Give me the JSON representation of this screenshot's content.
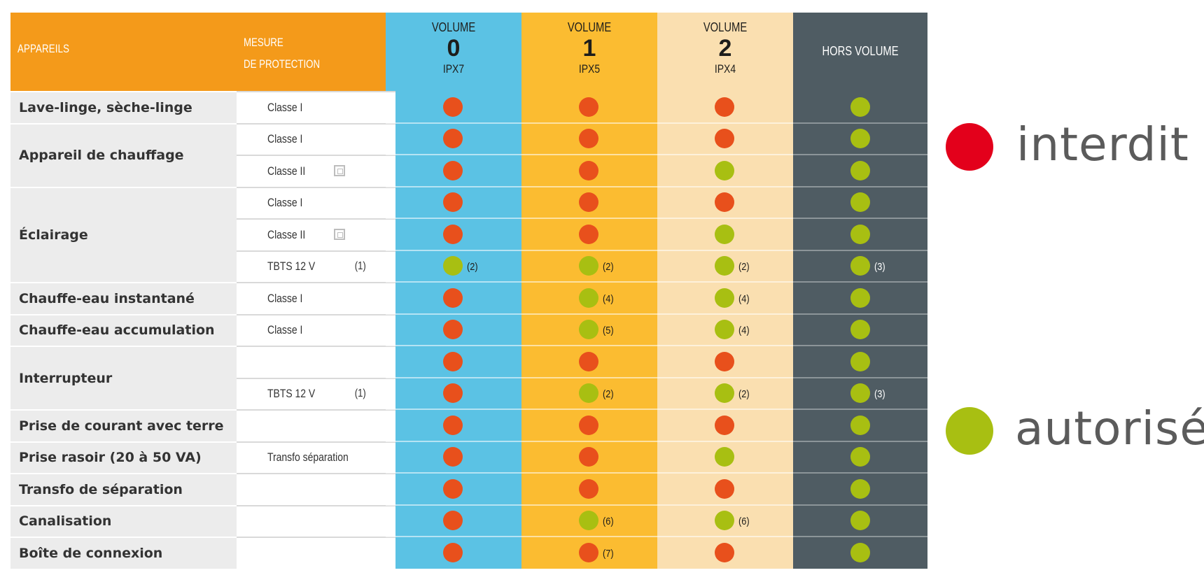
{
  "header": {
    "appareils_label": "APPAREILS",
    "mesure_label_line1": "MESURE",
    "mesure_label_line2": "DE PROTECTION",
    "volumes": [
      {
        "word": "VOLUME",
        "number": "0",
        "ip": "IPX7"
      },
      {
        "word": "VOLUME",
        "number": "1",
        "ip": "IPX5"
      },
      {
        "word": "VOLUME",
        "number": "2",
        "ip": "IPX4"
      }
    ],
    "hors_volume_label": "HORS VOLUME"
  },
  "colors": {
    "header_orange": "#f49a1a",
    "volume0": "#5bc2e4",
    "volume1": "#fbbc31",
    "volume2": "#fadfb0",
    "hors_volume": "#4f5c63",
    "forbidden": "#e8501c",
    "allowed": "#a8bf12",
    "legend_forbidden": "#e3001b",
    "legend_allowed": "#a8bf12"
  },
  "groups": [
    {
      "label": "Lave-linge, sèche-linge",
      "rows": 1
    },
    {
      "label": "Appareil de chauffage",
      "rows": 2
    },
    {
      "label": "Éclairage",
      "rows": 3
    },
    {
      "label": "Chauffe-eau instantané",
      "rows": 1
    },
    {
      "label": "Chauffe-eau accumulation",
      "rows": 1
    },
    {
      "label": "Interrupteur",
      "rows": 2
    },
    {
      "label": "Prise de courant avec terre",
      "rows": 1
    },
    {
      "label": "Prise rasoir (20 à 50 VA)",
      "rows": 1
    },
    {
      "label": "Transfo de séparation",
      "rows": 1
    },
    {
      "label": "Canalisation",
      "rows": 1
    },
    {
      "label": "Boîte de connexion",
      "rows": 1
    }
  ],
  "rows": [
    {
      "measure": "Classe I",
      "measure_note": "",
      "class2_icon": false,
      "cells": [
        {
          "status": "forbidden",
          "note": ""
        },
        {
          "status": "forbidden",
          "note": ""
        },
        {
          "status": "forbidden",
          "note": ""
        },
        {
          "status": "allowed",
          "note": ""
        }
      ]
    },
    {
      "measure": "Classe I",
      "measure_note": "",
      "class2_icon": false,
      "cells": [
        {
          "status": "forbidden",
          "note": ""
        },
        {
          "status": "forbidden",
          "note": ""
        },
        {
          "status": "forbidden",
          "note": ""
        },
        {
          "status": "allowed",
          "note": ""
        }
      ]
    },
    {
      "measure": "Classe II",
      "measure_note": "",
      "class2_icon": true,
      "cells": [
        {
          "status": "forbidden",
          "note": ""
        },
        {
          "status": "forbidden",
          "note": ""
        },
        {
          "status": "allowed",
          "note": ""
        },
        {
          "status": "allowed",
          "note": ""
        }
      ]
    },
    {
      "measure": "Classe I",
      "measure_note": "",
      "class2_icon": false,
      "cells": [
        {
          "status": "forbidden",
          "note": ""
        },
        {
          "status": "forbidden",
          "note": ""
        },
        {
          "status": "forbidden",
          "note": ""
        },
        {
          "status": "allowed",
          "note": ""
        }
      ]
    },
    {
      "measure": "Classe II",
      "measure_note": "",
      "class2_icon": true,
      "cells": [
        {
          "status": "forbidden",
          "note": ""
        },
        {
          "status": "forbidden",
          "note": ""
        },
        {
          "status": "allowed",
          "note": ""
        },
        {
          "status": "allowed",
          "note": ""
        }
      ]
    },
    {
      "measure": "TBTS 12 V",
      "measure_note": "(1)",
      "class2_icon": false,
      "cells": [
        {
          "status": "allowed",
          "note": "(2)"
        },
        {
          "status": "allowed",
          "note": "(2)"
        },
        {
          "status": "allowed",
          "note": "(2)"
        },
        {
          "status": "allowed",
          "note": "(3)"
        }
      ]
    },
    {
      "measure": "Classe I",
      "measure_note": "",
      "class2_icon": false,
      "cells": [
        {
          "status": "forbidden",
          "note": ""
        },
        {
          "status": "allowed",
          "note": "(4)"
        },
        {
          "status": "allowed",
          "note": "(4)"
        },
        {
          "status": "allowed",
          "note": ""
        }
      ]
    },
    {
      "measure": "Classe I",
      "measure_note": "",
      "class2_icon": false,
      "cells": [
        {
          "status": "forbidden",
          "note": ""
        },
        {
          "status": "allowed",
          "note": "(5)"
        },
        {
          "status": "allowed",
          "note": "(4)"
        },
        {
          "status": "allowed",
          "note": ""
        }
      ]
    },
    {
      "measure": "",
      "measure_note": "",
      "class2_icon": false,
      "cells": [
        {
          "status": "forbidden",
          "note": ""
        },
        {
          "status": "forbidden",
          "note": ""
        },
        {
          "status": "forbidden",
          "note": ""
        },
        {
          "status": "allowed",
          "note": ""
        }
      ]
    },
    {
      "measure": "TBTS 12 V",
      "measure_note": "(1)",
      "class2_icon": false,
      "cells": [
        {
          "status": "forbidden",
          "note": ""
        },
        {
          "status": "allowed",
          "note": "(2)"
        },
        {
          "status": "allowed",
          "note": "(2)"
        },
        {
          "status": "allowed",
          "note": "(3)"
        }
      ]
    },
    {
      "measure": "",
      "measure_note": "",
      "class2_icon": false,
      "cells": [
        {
          "status": "forbidden",
          "note": ""
        },
        {
          "status": "forbidden",
          "note": ""
        },
        {
          "status": "forbidden",
          "note": ""
        },
        {
          "status": "allowed",
          "note": ""
        }
      ]
    },
    {
      "measure": "Transfo séparation",
      "measure_note": "",
      "class2_icon": false,
      "cells": [
        {
          "status": "forbidden",
          "note": ""
        },
        {
          "status": "forbidden",
          "note": ""
        },
        {
          "status": "allowed",
          "note": ""
        },
        {
          "status": "allowed",
          "note": ""
        }
      ]
    },
    {
      "measure": "",
      "measure_note": "",
      "class2_icon": false,
      "cells": [
        {
          "status": "forbidden",
          "note": ""
        },
        {
          "status": "forbidden",
          "note": ""
        },
        {
          "status": "forbidden",
          "note": ""
        },
        {
          "status": "allowed",
          "note": ""
        }
      ]
    },
    {
      "measure": "",
      "measure_note": "",
      "class2_icon": false,
      "cells": [
        {
          "status": "forbidden",
          "note": ""
        },
        {
          "status": "allowed",
          "note": "(6)"
        },
        {
          "status": "allowed",
          "note": "(6)"
        },
        {
          "status": "allowed",
          "note": ""
        }
      ]
    },
    {
      "measure": "",
      "measure_note": "",
      "class2_icon": false,
      "cells": [
        {
          "status": "forbidden",
          "note": ""
        },
        {
          "status": "forbidden",
          "note": "(7)"
        },
        {
          "status": "forbidden",
          "note": ""
        },
        {
          "status": "allowed",
          "note": ""
        }
      ]
    }
  ],
  "legend": {
    "forbidden_label": "interdit",
    "allowed_label": "autorisé"
  }
}
